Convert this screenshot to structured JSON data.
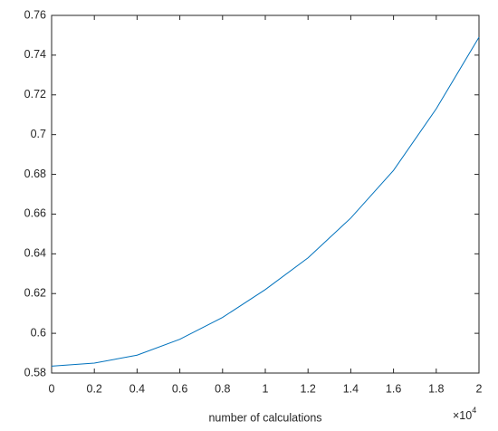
{
  "chart_data": {
    "type": "line",
    "xlabel": "number of calculations",
    "x_exponent_base": "×10",
    "x_exponent_power": "4",
    "x": [
      0,
      2000,
      4000,
      6000,
      8000,
      10000,
      12000,
      14000,
      16000,
      18000,
      20000
    ],
    "series": [
      {
        "color": "#0072bd",
        "values": [
          0.5835,
          0.585,
          0.589,
          0.597,
          0.608,
          0.622,
          0.638,
          0.658,
          0.682,
          0.713,
          0.749
        ]
      }
    ],
    "xlim": [
      0,
      20000
    ],
    "xticks": [
      {
        "value": 0,
        "label": "0"
      },
      {
        "value": 2000,
        "label": "0.2"
      },
      {
        "value": 4000,
        "label": "0.4"
      },
      {
        "value": 6000,
        "label": "0.6"
      },
      {
        "value": 8000,
        "label": "0.8"
      },
      {
        "value": 10000,
        "label": "1"
      },
      {
        "value": 12000,
        "label": "1.2"
      },
      {
        "value": 14000,
        "label": "1.4"
      },
      {
        "value": 16000,
        "label": "1.6"
      },
      {
        "value": 18000,
        "label": "1.8"
      },
      {
        "value": 20000,
        "label": "2"
      }
    ],
    "ylim": [
      0.58,
      0.76
    ],
    "yticks": [
      0.58,
      0.6,
      0.62,
      0.64,
      0.66,
      0.68,
      0.7,
      0.72,
      0.74,
      0.76
    ],
    "grid": false
  }
}
